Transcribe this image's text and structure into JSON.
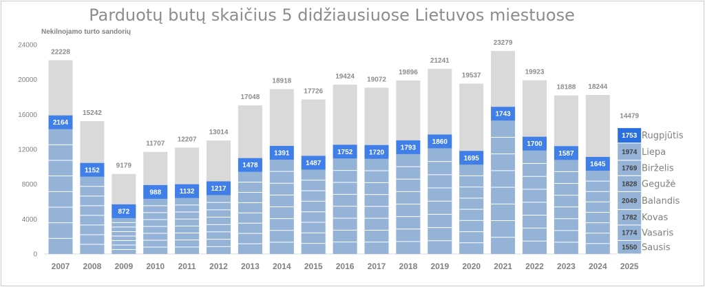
{
  "chart_data": {
    "type": "bar",
    "title": "Parduotų butų skaičius 5 didžiausiuose Lietuvos miestuose",
    "ylabel": "Nekilnojamo turto sandorių",
    "ylim": [
      0,
      24000
    ],
    "yticks": [
      0,
      4000,
      8000,
      12000,
      16000,
      20000,
      24000
    ],
    "grid": false,
    "categories": [
      "2007",
      "2008",
      "2009",
      "2010",
      "2011",
      "2012",
      "2013",
      "2014",
      "2015",
      "2016",
      "2017",
      "2018",
      "2019",
      "2020",
      "2021",
      "2022",
      "2023",
      "2024",
      "2025"
    ],
    "totals": [
      22228,
      15242,
      9179,
      11707,
      12207,
      13014,
      17048,
      18918,
      17726,
      19424,
      19072,
      19896,
      21241,
      19537,
      23279,
      19923,
      18188,
      18244,
      14479
    ],
    "august_values": [
      2164,
      1152,
      872,
      988,
      1132,
      1217,
      1478,
      1391,
      1487,
      1752,
      1720,
      1793,
      1860,
      1695,
      1743,
      1700,
      1587,
      1645,
      1753
    ],
    "colors": {
      "total_bar": "#d9d9d9",
      "jan_jul_bar": "#95b3d7",
      "august_bar": "#3f7fe7",
      "current_year_highlight": "#2a6fe0",
      "segment_line": "#ffffff"
    },
    "current_year": {
      "year": "2025",
      "months": [
        {
          "name": "Sausis",
          "value": 1550
        },
        {
          "name": "Vasaris",
          "value": 1774
        },
        {
          "name": "Kovas",
          "value": 1782
        },
        {
          "name": "Balandis",
          "value": 2049
        },
        {
          "name": "Gegužė",
          "value": 1828
        },
        {
          "name": "Birželis",
          "value": 1769
        },
        {
          "name": "Liepa",
          "value": 1974
        },
        {
          "name": "Rugpjūtis",
          "value": 1753
        }
      ]
    }
  }
}
